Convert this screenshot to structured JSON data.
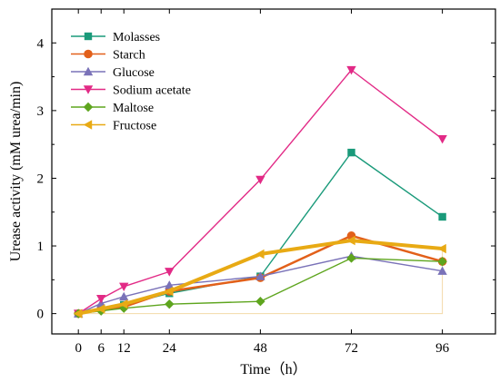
{
  "chart_data": {
    "type": "line",
    "title": "",
    "xlabel": "Time（h）",
    "ylabel": "Urease activity (mM urea/min)",
    "x": [
      0,
      6,
      12,
      24,
      48,
      72,
      96
    ],
    "xticks": [
      0,
      6,
      12,
      24,
      48,
      72,
      96
    ],
    "yticks": [
      0,
      1,
      2,
      3,
      4
    ],
    "xlim": [
      -7,
      110
    ],
    "ylim": [
      -0.3,
      4.5
    ],
    "grid": false,
    "legend_position": "top-left",
    "series": [
      {
        "name": "Molasses",
        "color": "#1a9a7a",
        "marker": "square",
        "values": [
          0.0,
          0.08,
          0.13,
          0.3,
          0.55,
          2.38,
          1.43
        ]
      },
      {
        "name": "Starch",
        "color": "#e2601a",
        "marker": "circle",
        "values": [
          0.0,
          0.06,
          0.1,
          0.33,
          0.53,
          1.15,
          0.77
        ]
      },
      {
        "name": "Glucose",
        "color": "#7a72b8",
        "marker": "triangle-up",
        "values": [
          0.0,
          0.15,
          0.25,
          0.42,
          0.55,
          0.85,
          0.63
        ]
      },
      {
        "name": "Sodium acetate",
        "color": "#e22a86",
        "marker": "triangle-down",
        "values": [
          0.0,
          0.22,
          0.4,
          0.62,
          1.98,
          3.6,
          2.58
        ]
      },
      {
        "name": "Maltose",
        "color": "#5ea51e",
        "marker": "diamond",
        "values": [
          0.0,
          0.04,
          0.08,
          0.14,
          0.18,
          0.82,
          0.77
        ]
      },
      {
        "name": "Fructose",
        "color": "#e8aa14",
        "marker": "triangle-left",
        "values": [
          0.0,
          0.07,
          0.14,
          0.33,
          0.88,
          1.08,
          0.96
        ]
      }
    ]
  }
}
